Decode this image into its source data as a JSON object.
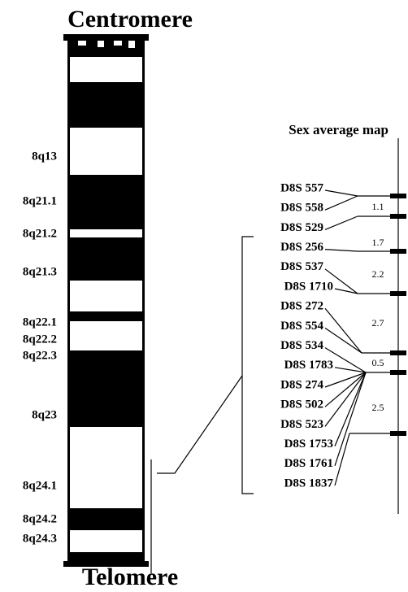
{
  "ideogram": {
    "top_label": "Centromere",
    "bottom_label": "Telomere",
    "bands": [
      "8q13",
      "8q21.1",
      "8q21.2",
      "8q21.3",
      "8q22.1",
      "8q22.2",
      "8q22.3",
      "8q23",
      "8q24.1",
      "8q24.2",
      "8q24.3"
    ]
  },
  "map": {
    "title": "Sex average map",
    "markers": [
      "D8S 557",
      "D8S 558",
      "D8S 529",
      "D8S 256",
      "D8S 537",
      "D8S 1710",
      "D8S 272",
      "D8S 554",
      "D8S 534",
      "D8S 1783",
      "D8S 274",
      "D8S 502",
      "D8S 523",
      "D8S 1753",
      "D8S 1761",
      "D8S 1837"
    ],
    "distances": [
      1.1,
      1.7,
      2.2,
      2.7,
      0.5,
      2.5
    ]
  }
}
